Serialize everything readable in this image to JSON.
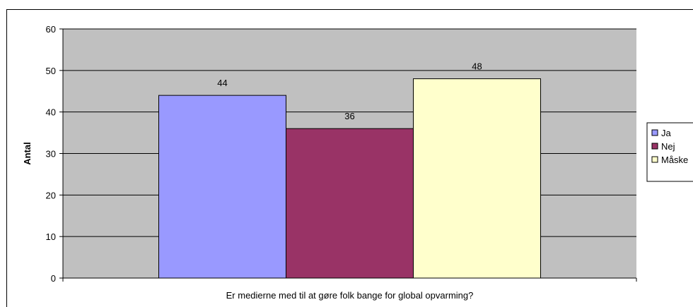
{
  "chart_data": {
    "type": "bar",
    "xlabel": "Er medierne med til at gøre folk bange for global opvarming?",
    "ylabel": "Antal",
    "ylim": [
      0,
      60
    ],
    "yticks": [
      0,
      10,
      20,
      30,
      40,
      50,
      60
    ],
    "grid": true,
    "legend": "right",
    "series": [
      {
        "name": "Ja",
        "value": 44,
        "label": "44",
        "color": "#9999FF"
      },
      {
        "name": "Nej",
        "value": 36,
        "label": "36",
        "color": "#993366"
      },
      {
        "name": "Måske",
        "value": 48,
        "label": "48",
        "color": "#FFFFCC"
      }
    ],
    "plot_background": "#C0C0C0"
  }
}
